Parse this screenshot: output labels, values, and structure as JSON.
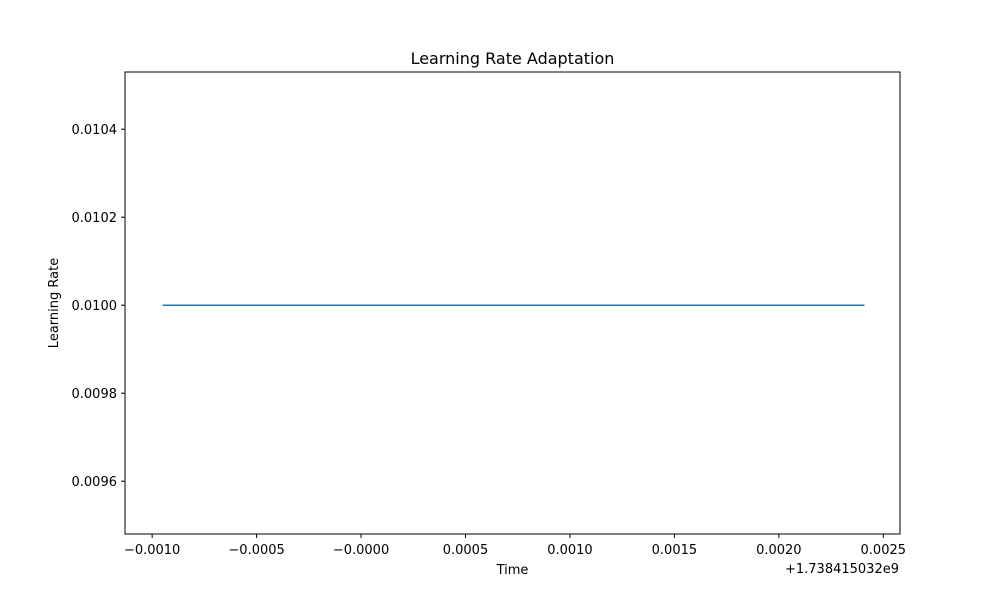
{
  "chart_data": {
    "type": "line",
    "title": "Learning Rate Adaptation",
    "xlabel": "Time",
    "ylabel": "Learning Rate",
    "x_offset_label": "+1.738415032e9",
    "xlim": [
      -0.00113,
      0.00258
    ],
    "ylim": [
      0.00948,
      0.01053
    ],
    "x_ticks": [
      -0.001,
      -0.0005,
      0.0,
      0.0005,
      0.001,
      0.0015,
      0.002,
      0.0025
    ],
    "x_tick_labels": [
      "−0.0010",
      "−0.0005",
      "−0.0000",
      "0.0005",
      "0.0010",
      "0.0015",
      "0.0020",
      "0.0025"
    ],
    "y_ticks": [
      0.0096,
      0.0098,
      0.01,
      0.0102,
      0.0104
    ],
    "y_tick_labels": [
      "0.0096",
      "0.0098",
      "0.0100",
      "0.0102",
      "0.0104"
    ],
    "grid": false,
    "series": [
      {
        "color": "#1f77b4",
        "x": [
          -0.00095,
          0.00241
        ],
        "y": [
          0.01,
          0.01
        ]
      }
    ]
  }
}
